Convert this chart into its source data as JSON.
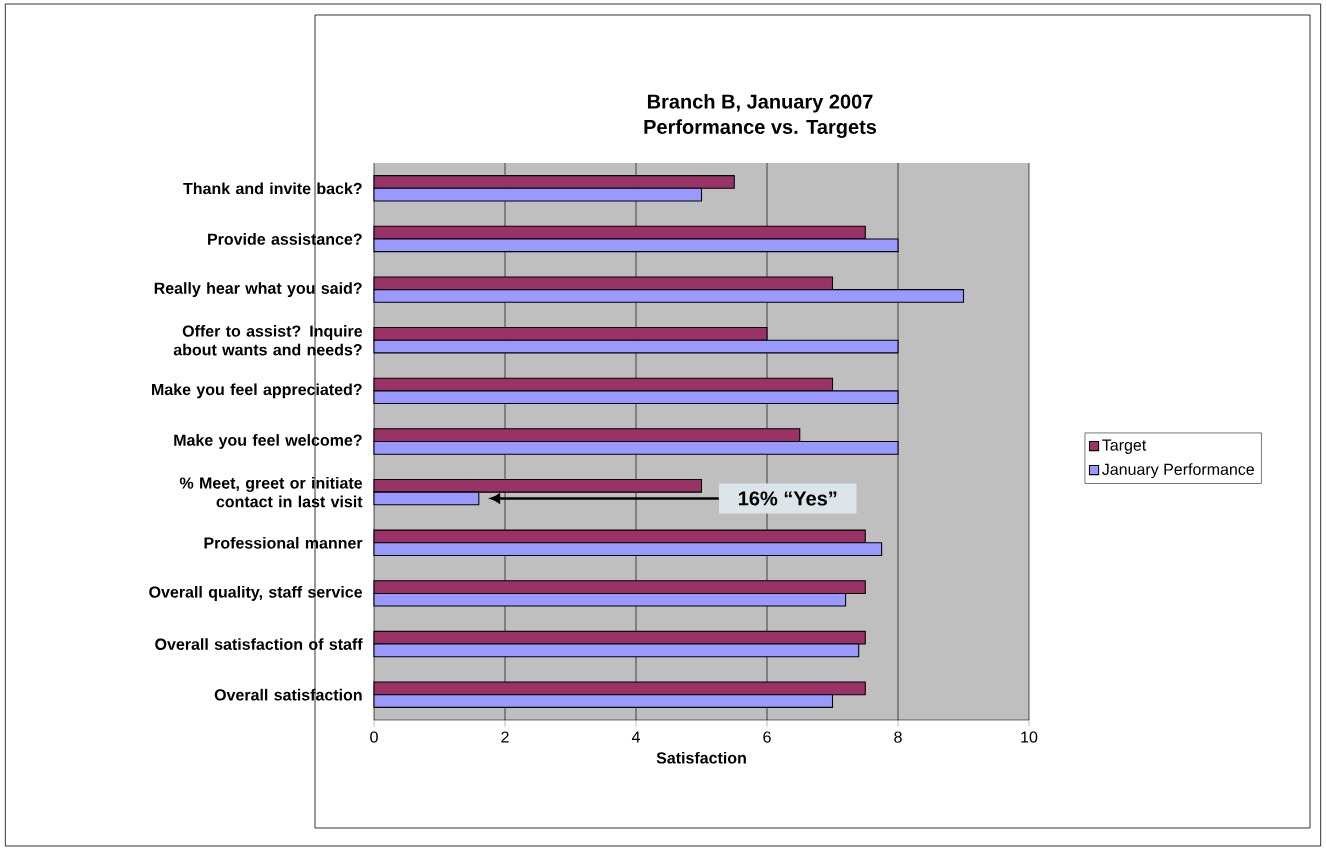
{
  "chart_data": {
    "type": "bar",
    "orientation": "horizontal",
    "title": "Branch B, January 2007",
    "subtitle": "Performance vs. Targets",
    "xlabel": "Satisfaction",
    "categories": [
      "Thank and invite back?",
      "Provide assistance?",
      "Really hear what you said?",
      "Offer to assist? Inquire about wants and needs?",
      "Make you feel appreciated?",
      "Make you feel welcome?",
      "% Meet, greet or initiate contact in last visit",
      "Professional manner",
      "Overall quality, staff service",
      "Overall satisfaction of staff",
      "Overall satisfaction"
    ],
    "series": [
      {
        "name": "Target",
        "color": "#993366",
        "values": [
          5.5,
          7.5,
          7,
          6,
          7,
          6.5,
          5,
          7.5,
          7.5,
          7.5,
          7.5
        ]
      },
      {
        "name": "January Performance",
        "color": "#9999ff",
        "values": [
          5,
          8,
          9,
          8,
          8,
          8,
          1.6,
          7.75,
          7.2,
          7.4,
          7
        ]
      }
    ],
    "xlim": [
      0,
      10
    ],
    "xticks": [
      0,
      2,
      4,
      6,
      8,
      10
    ],
    "grid": "x",
    "legend": "right",
    "annotations": [
      "16% “Yes”"
    ]
  }
}
